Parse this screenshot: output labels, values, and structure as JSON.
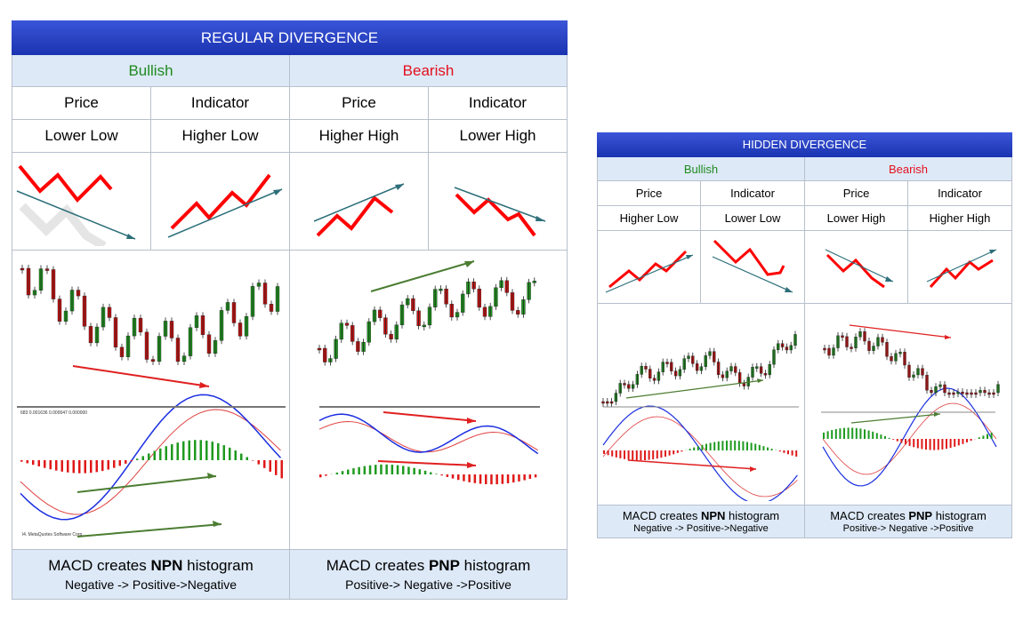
{
  "regular": {
    "title": "REGULAR DIVERGENCE",
    "bullish": {
      "label": "Bullish",
      "price_label": "Price",
      "indicator_label": "Indicator",
      "price_value": "Lower Low",
      "indicator_value": "Higher Low",
      "chart_caption": "683 0.001636 0.000047 0.000000",
      "watermark": "l4. MetaQuotes Software Corp.",
      "footer_prefix": "MACD creates ",
      "footer_bold": "NPN",
      "footer_suffix": " histogram",
      "footer_sub": "Negative -> Positive->Negative"
    },
    "bearish": {
      "label": "Bearish",
      "price_label": "Price",
      "indicator_label": "Indicator",
      "price_value": "Higher High",
      "indicator_value": "Lower High",
      "footer_prefix": "MACD creates ",
      "footer_bold": "PNP",
      "footer_suffix": " histogram",
      "footer_sub": "Positive-> Negative ->Positive"
    }
  },
  "hidden": {
    "title": "HIDDEN DIVERGENCE",
    "bullish": {
      "label": "Bullish",
      "price_label": "Price",
      "indicator_label": "Indicator",
      "price_value": "Higher Low",
      "indicator_value": "Lower Low",
      "footer_prefix": "MACD creates ",
      "footer_bold": "NPN",
      "footer_suffix": " histogram",
      "footer_sub": "Negative -> Positive->Negative"
    },
    "bearish": {
      "label": "Bearish",
      "price_label": "Price",
      "indicator_label": "Indicator",
      "price_value": "Lower High",
      "indicator_value": "Higher High",
      "footer_prefix": "MACD creates ",
      "footer_bold": "PNP",
      "footer_suffix": " histogram",
      "footer_sub": "Positive-> Negative ->Positive"
    }
  },
  "colors": {
    "title_bg": "#2a44c8",
    "header_bg": "#dde9f7",
    "bull": "#1f8a1f",
    "bear": "#e3101e",
    "trend": "#2d6f7a",
    "arrow_green": "#4c7d32",
    "arrow_red": "#d42020",
    "macd": "#1a2ee0",
    "signal": "#e04040"
  }
}
